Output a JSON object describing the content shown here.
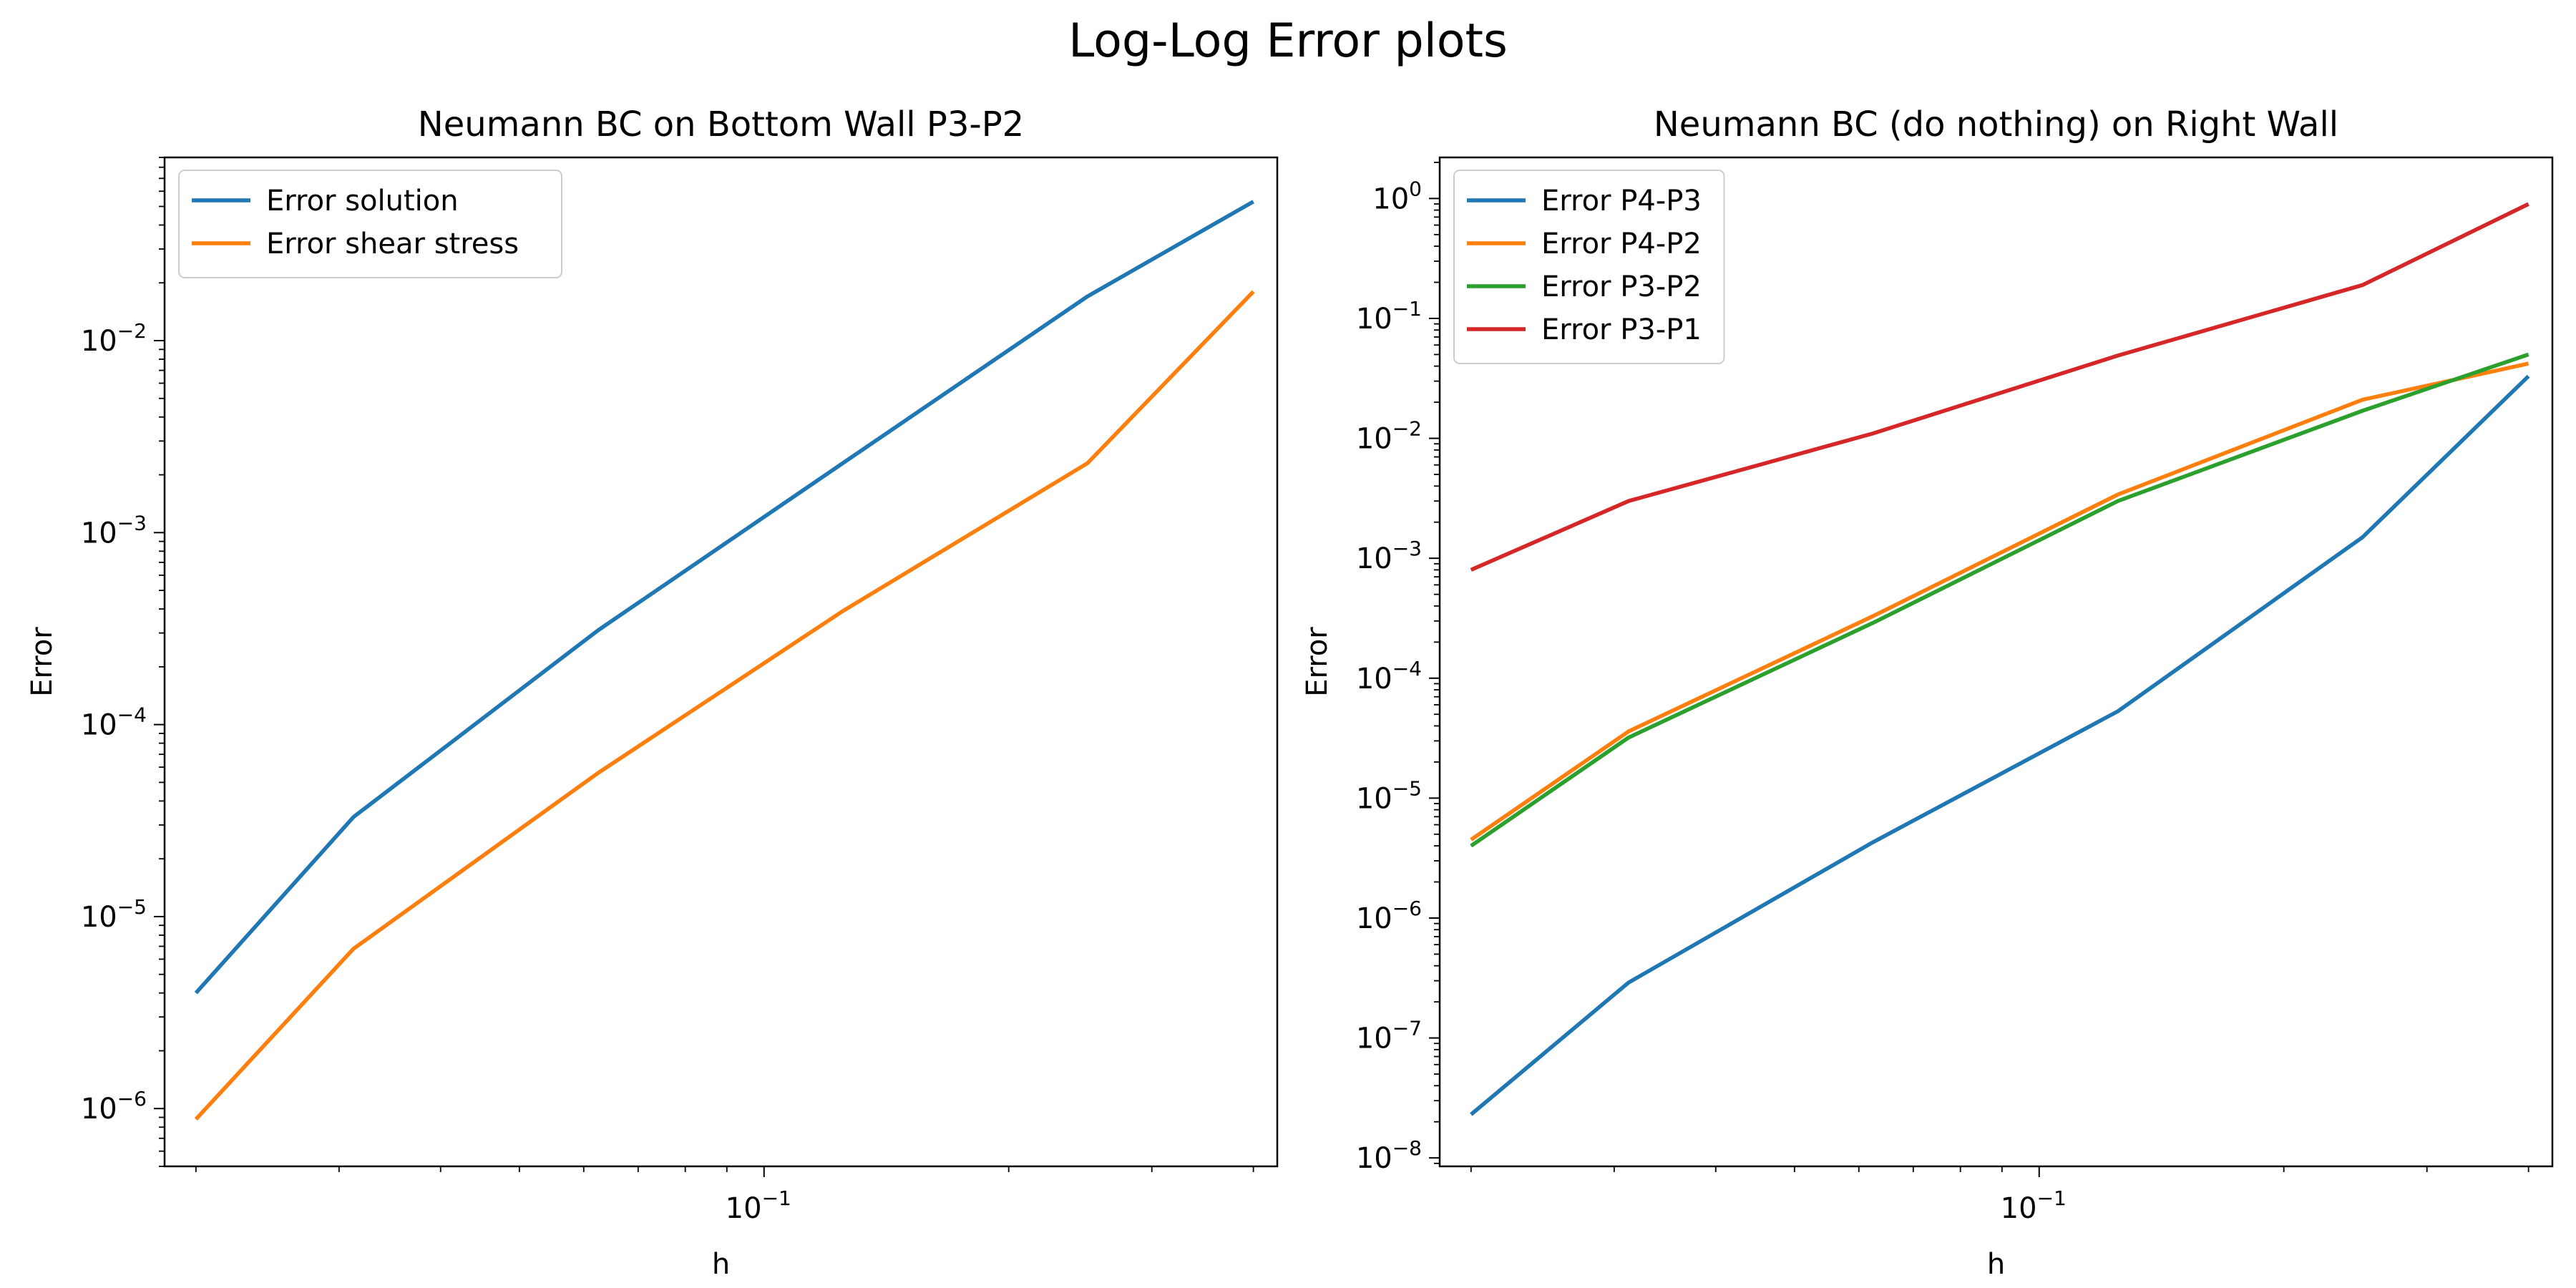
{
  "figure": {
    "title": "Log-Log Error plots"
  },
  "chart_data": [
    {
      "type": "line",
      "title": "Neumann BC on Bottom Wall P3-P2",
      "xlabel": "h",
      "ylabel": "Error",
      "xscale": "log",
      "yscale": "log",
      "xlim": [
        0.0183,
        0.428
      ],
      "ylim": [
        5e-07,
        0.09
      ],
      "x_ticks": [
        {
          "value": 0.1,
          "base": "10",
          "exp": "−1"
        }
      ],
      "y_ticks": [
        {
          "value": 1e-06,
          "base": "10",
          "exp": "−6"
        },
        {
          "value": 1e-05,
          "base": "10",
          "exp": "−5"
        },
        {
          "value": 0.0001,
          "base": "10",
          "exp": "−4"
        },
        {
          "value": 0.001,
          "base": "10",
          "exp": "−3"
        },
        {
          "value": 0.01,
          "base": "10",
          "exp": "−2"
        }
      ],
      "grid": false,
      "legend_position": "upper left",
      "x": [
        0.02,
        0.03125,
        0.0625,
        0.125,
        0.25,
        0.4
      ],
      "series": [
        {
          "name": "Error solution",
          "color": "#1f77b4",
          "values": [
            4e-06,
            3.3e-05,
            0.00031,
            0.0023,
            0.017,
            0.053
          ]
        },
        {
          "name": "Error shear stress",
          "color": "#ff7f0e",
          "values": [
            8.8e-07,
            6.8e-06,
            5.6e-05,
            0.00039,
            0.0023,
            0.018
          ]
        }
      ]
    },
    {
      "type": "line",
      "title": "Neumann BC (do nothing) on Right Wall",
      "xlabel": "h",
      "ylabel": "Error",
      "xscale": "log",
      "yscale": "log",
      "xlim": [
        0.0183,
        0.428
      ],
      "ylim": [
        8.5e-09,
        2.2
      ],
      "x_ticks": [
        {
          "value": 0.1,
          "base": "10",
          "exp": "−1"
        }
      ],
      "y_ticks": [
        {
          "value": 1e-08,
          "base": "10",
          "exp": "−8"
        },
        {
          "value": 1e-07,
          "base": "10",
          "exp": "−7"
        },
        {
          "value": 1e-06,
          "base": "10",
          "exp": "−6"
        },
        {
          "value": 1e-05,
          "base": "10",
          "exp": "−5"
        },
        {
          "value": 0.0001,
          "base": "10",
          "exp": "−4"
        },
        {
          "value": 0.001,
          "base": "10",
          "exp": "−3"
        },
        {
          "value": 0.01,
          "base": "10",
          "exp": "−2"
        },
        {
          "value": 0.1,
          "base": "10",
          "exp": "−1"
        },
        {
          "value": 1,
          "base": "10",
          "exp": "0"
        }
      ],
      "grid": false,
      "legend_position": "upper left",
      "x": [
        0.02,
        0.03125,
        0.0625,
        0.125,
        0.25,
        0.4
      ],
      "series": [
        {
          "name": "Error P4-P3",
          "color": "#1f77b4",
          "values": [
            2.3e-08,
            2.9e-07,
            4.3e-06,
            5.3e-05,
            0.0015,
            0.033
          ]
        },
        {
          "name": "Error P4-P2",
          "color": "#ff7f0e",
          "values": [
            4.5e-06,
            3.6e-05,
            0.00033,
            0.0034,
            0.021,
            0.042
          ]
        },
        {
          "name": "Error P3-P2",
          "color": "#2ca02c",
          "values": [
            4e-06,
            3.2e-05,
            0.00029,
            0.003,
            0.017,
            0.05
          ]
        },
        {
          "name": "Error P3-P1",
          "color": "#d62728",
          "values": [
            0.0008,
            0.003,
            0.011,
            0.049,
            0.19,
            0.9
          ]
        }
      ]
    }
  ]
}
